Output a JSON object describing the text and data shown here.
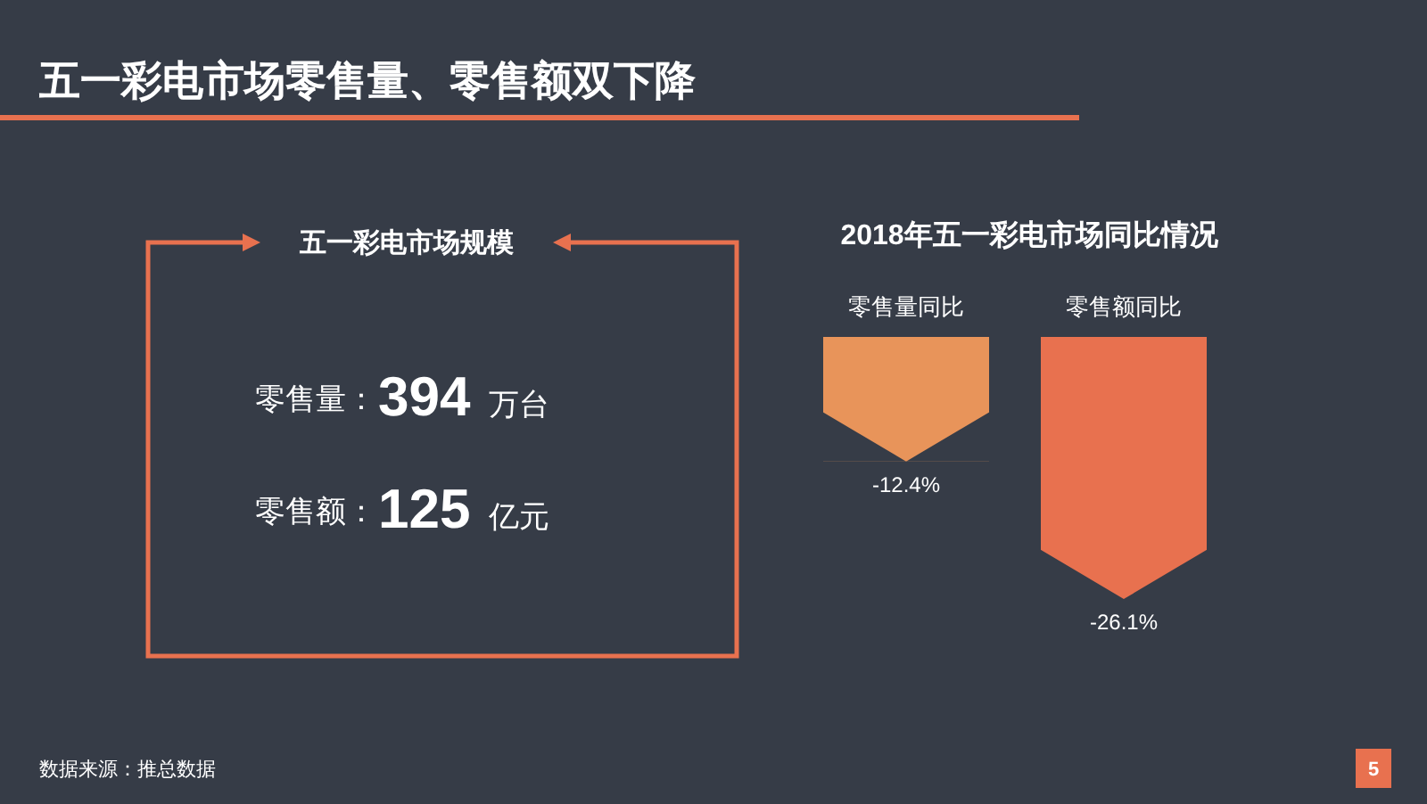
{
  "chart_data": [
    {
      "type": "other",
      "title": "五一彩电市场零售量、零售额双下降",
      "subtitle": "五一彩电市场规模",
      "annotations": [
        "零售量：",
        "394",
        "万台",
        "零售额：",
        "125",
        "亿元",
        "数据来源：推总数据",
        "5"
      ]
    },
    {
      "type": "bar",
      "title": "2018年五一彩电市场同比情况",
      "categories": [
        "零售量同比",
        "零售额同比"
      ],
      "values": [
        -12.4,
        -26.1
      ],
      "colors": [
        "#e8945a",
        "#e8714f"
      ],
      "value_labels": [
        "-12.4%",
        "-26.1%"
      ]
    }
  ]
}
